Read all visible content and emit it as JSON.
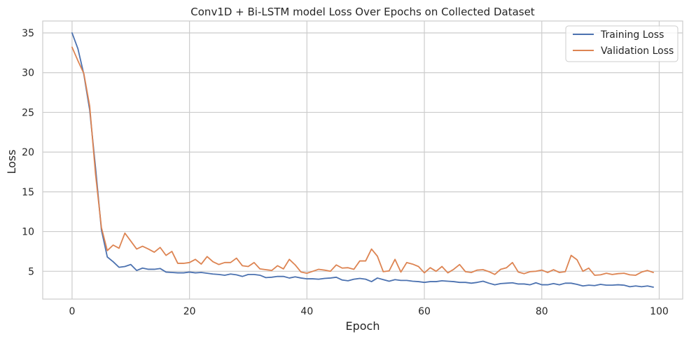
{
  "chart_data": {
    "type": "line",
    "title": "Conv1D + Bi-LSTM model Loss Over Epochs on Collected Dataset",
    "xlabel": "Epoch",
    "ylabel": "Loss",
    "xlim": [
      -5,
      104
    ],
    "ylim": [
      1.5,
      36.5
    ],
    "xticks": [
      0,
      20,
      40,
      60,
      80,
      100
    ],
    "yticks": [
      5,
      10,
      15,
      20,
      25,
      30,
      35
    ],
    "grid": true,
    "legend_position": "top-right",
    "x": [
      0,
      1,
      2,
      3,
      4,
      5,
      6,
      7,
      8,
      9,
      10,
      11,
      12,
      13,
      14,
      15,
      16,
      17,
      18,
      19,
      20,
      21,
      22,
      23,
      24,
      25,
      26,
      27,
      28,
      29,
      30,
      31,
      32,
      33,
      34,
      35,
      36,
      37,
      38,
      39,
      40,
      41,
      42,
      43,
      44,
      45,
      46,
      47,
      48,
      49,
      50,
      51,
      52,
      53,
      54,
      55,
      56,
      57,
      58,
      59,
      60,
      61,
      62,
      63,
      64,
      65,
      66,
      67,
      68,
      69,
      70,
      71,
      72,
      73,
      74,
      75,
      76,
      77,
      78,
      79,
      80,
      81,
      82,
      83,
      84,
      85,
      86,
      87,
      88,
      89,
      90,
      91,
      92,
      93,
      94,
      95,
      96,
      97,
      98,
      99
    ],
    "series": [
      {
        "name": "Training Loss",
        "color": "#4c72b0",
        "values": [
          35.0,
          33.0,
          29.8,
          25.3,
          18.0,
          10.2,
          6.8,
          6.2,
          5.5,
          5.6,
          5.85,
          5.1,
          5.4,
          5.25,
          5.25,
          5.35,
          4.9,
          4.85,
          4.8,
          4.8,
          4.9,
          4.8,
          4.85,
          4.75,
          4.65,
          4.6,
          4.5,
          4.65,
          4.55,
          4.35,
          4.6,
          4.6,
          4.5,
          4.2,
          4.25,
          4.35,
          4.35,
          4.15,
          4.3,
          4.15,
          4.05,
          4.05,
          4.0,
          4.1,
          4.15,
          4.25,
          3.9,
          3.8,
          4.0,
          4.1,
          4.0,
          3.7,
          4.15,
          3.95,
          3.75,
          3.95,
          3.85,
          3.85,
          3.75,
          3.7,
          3.6,
          3.7,
          3.7,
          3.8,
          3.75,
          3.7,
          3.6,
          3.6,
          3.5,
          3.6,
          3.75,
          3.5,
          3.3,
          3.45,
          3.5,
          3.55,
          3.4,
          3.4,
          3.3,
          3.55,
          3.3,
          3.3,
          3.45,
          3.3,
          3.5,
          3.5,
          3.35,
          3.15,
          3.25,
          3.2,
          3.35,
          3.25,
          3.25,
          3.3,
          3.25,
          3.05,
          3.15,
          3.05,
          3.15,
          3.0
        ]
      },
      {
        "name": "Validation Loss",
        "color": "#dd8452",
        "values": [
          33.2,
          31.5,
          29.9,
          25.8,
          17.2,
          10.5,
          7.6,
          8.3,
          7.9,
          9.8,
          8.8,
          7.8,
          8.15,
          7.8,
          7.4,
          8.0,
          7.0,
          7.5,
          6.0,
          6.0,
          6.1,
          6.5,
          5.9,
          6.85,
          6.2,
          5.85,
          6.1,
          6.1,
          6.65,
          5.7,
          5.6,
          6.1,
          5.3,
          5.2,
          5.1,
          5.7,
          5.3,
          6.5,
          5.8,
          4.9,
          4.75,
          5.0,
          5.25,
          5.15,
          5.0,
          5.8,
          5.4,
          5.45,
          5.25,
          6.3,
          6.3,
          7.8,
          6.9,
          4.95,
          5.05,
          6.5,
          4.9,
          6.1,
          5.9,
          5.6,
          4.8,
          5.45,
          5.0,
          5.6,
          4.8,
          5.25,
          5.85,
          4.95,
          4.85,
          5.15,
          5.2,
          4.95,
          4.6,
          5.25,
          5.45,
          6.1,
          4.9,
          4.7,
          4.95,
          5.0,
          5.15,
          4.85,
          5.2,
          4.85,
          4.95,
          7.0,
          6.45,
          5.0,
          5.4,
          4.5,
          4.55,
          4.75,
          4.6,
          4.7,
          4.75,
          4.55,
          4.5,
          4.9,
          5.1,
          4.85
        ]
      }
    ]
  }
}
